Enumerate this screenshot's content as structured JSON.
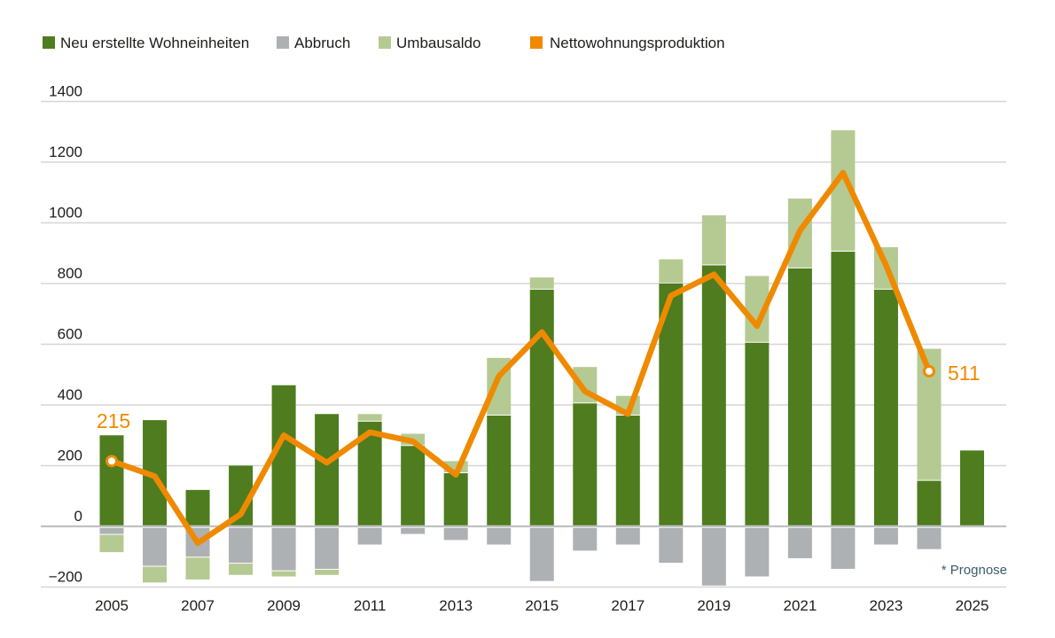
{
  "page": {
    "background": "#ffffff",
    "description": "Stacked bar chart with line overlay: housing production per year, 2005-2025"
  },
  "legend": {
    "items": [
      {
        "id": "neubau",
        "label": "Neu erstellte Wohneinheiten",
        "color": "#4e7c1f",
        "swatch": "square"
      },
      {
        "id": "abbruch",
        "label": "Abbruch",
        "color": "#aeb1b3",
        "swatch": "square"
      },
      {
        "id": "umbausaldo",
        "label": "Umbausaldo",
        "color": "#b5ca92",
        "swatch": "square"
      },
      {
        "id": "netto",
        "label": "Nettowohnungsproduktion",
        "color": "#f18a00",
        "swatch": "square"
      }
    ]
  },
  "annotations": {
    "start_point": {
      "text": "215",
      "color": "#ef8a00"
    },
    "end_point": {
      "text": "511",
      "color": "#ef8a00"
    },
    "footnote": {
      "text": "* Prognose",
      "color": "#3d5d6b"
    }
  },
  "chart_data": {
    "type": "bar",
    "subtype": "stacked-bar-with-line-overlay",
    "title": "",
    "xlabel": "",
    "ylabel": "",
    "categories": [
      2005,
      2006,
      2007,
      2008,
      2009,
      2010,
      2011,
      2012,
      2013,
      2014,
      2015,
      2016,
      2017,
      2018,
      2019,
      2020,
      2021,
      2022,
      2023,
      2024,
      2025
    ],
    "series": [
      {
        "name": "Neu erstellte Wohneinheiten",
        "type": "bar",
        "color": "#4e7c1f",
        "values": [
          300,
          350,
          120,
          200,
          465,
          370,
          345,
          265,
          175,
          365,
          780,
          405,
          365,
          800,
          860,
          605,
          850,
          905,
          780,
          150,
          250
        ]
      },
      {
        "name": "Abbruch",
        "type": "bar",
        "color": "#aeb1b3",
        "note": "plotted below the zero line",
        "values": [
          -25,
          -130,
          -100,
          -120,
          -145,
          -140,
          -60,
          -25,
          -45,
          -60,
          -180,
          -80,
          -60,
          -120,
          -195,
          -165,
          -105,
          -140,
          -60,
          -75,
          0
        ]
      },
      {
        "name": "Umbausaldo",
        "type": "bar",
        "color": "#b5ca92",
        "note": "signed; negative values stack below the Abbruch segment, positive values stack on top of the green bar",
        "values": [
          -60,
          -55,
          -75,
          -40,
          -20,
          -20,
          25,
          40,
          40,
          190,
          40,
          120,
          65,
          80,
          165,
          220,
          230,
          400,
          140,
          435,
          0
        ]
      },
      {
        "name": "Nettowohnungsproduktion",
        "type": "line",
        "color": "#ef8a00",
        "endpoint_markers": true,
        "values": [
          215,
          165,
          -55,
          40,
          300,
          210,
          310,
          280,
          170,
          495,
          640,
          445,
          370,
          760,
          830,
          660,
          975,
          1165,
          860,
          511,
          null
        ]
      }
    ],
    "yticks": [
      1400,
      1200,
      1000,
      800,
      600,
      400,
      200,
      0,
      -200
    ],
    "xticks": [
      2005,
      2007,
      2009,
      2011,
      2013,
      2015,
      2017,
      2019,
      2021,
      2023,
      2025
    ],
    "ylim": [
      -280,
      1450
    ],
    "grid": "horizontal",
    "legend_position": "top-left",
    "axis_color": "#1d1d1b",
    "grid_color": "#d6d6d6",
    "zero_line_color": "#bfc1c2",
    "minus_sign": "−"
  }
}
